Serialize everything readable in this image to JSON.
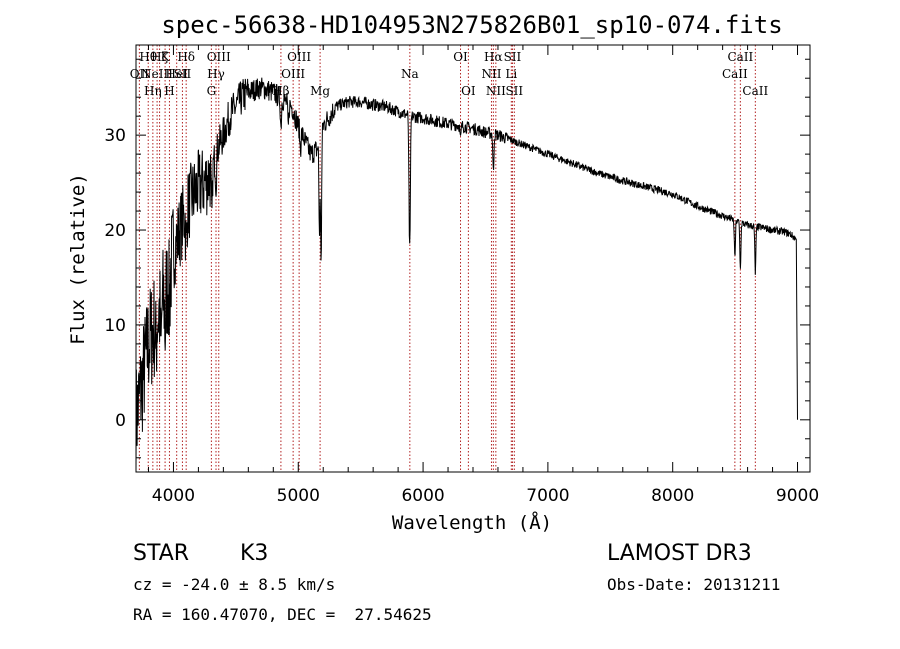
{
  "chart_data": {
    "type": "line",
    "title": "spec-56638-HD104953N275826B01_sp10-074.fits",
    "xlabel": "Wavelength (Å)",
    "ylabel": "Flux (relative)",
    "xlim": [
      3700,
      9100
    ],
    "ylim": [
      -5.5,
      39.5
    ],
    "xticks": [
      4000,
      5000,
      6000,
      7000,
      8000,
      9000
    ],
    "yticks": [
      0,
      10,
      20,
      30
    ],
    "grid": false,
    "legend": "none",
    "line_color": "#000000",
    "marker_color": "#b22222",
    "series": [
      {
        "x": [
          3700,
          3750,
          3800,
          3850,
          3900,
          3950,
          4000,
          4050,
          4100,
          4150,
          4200,
          4250,
          4300,
          4350,
          4400,
          4450,
          4500,
          4550,
          4600,
          4650,
          4700,
          4750,
          4800,
          4850,
          4900,
          4950,
          5000,
          5050,
          5100,
          5150,
          5200,
          5250,
          5300,
          5400,
          5500,
          5600,
          5700,
          5800,
          5900,
          6000,
          6100,
          6200,
          6300,
          6400,
          6500,
          6600,
          6700,
          6800,
          6900,
          7000,
          7200,
          7400,
          7600,
          7800,
          8000,
          8200,
          8400,
          8500,
          8600,
          8700,
          8800,
          8900,
          8950,
          8990,
          9000
        ],
        "y": [
          0.0,
          4.0,
          8.0,
          10.0,
          12.0,
          14.0,
          17.5,
          20.0,
          22.0,
          23.5,
          24.5,
          25.0,
          26.0,
          28.5,
          30.0,
          32.0,
          33.0,
          34.0,
          34.5,
          34.8,
          35.0,
          34.8,
          34.5,
          34.0,
          33.5,
          33.0,
          31.0,
          29.5,
          28.0,
          28.5,
          31.0,
          32.0,
          33.0,
          33.5,
          33.5,
          33.2,
          33.0,
          32.5,
          32.0,
          31.8,
          31.5,
          31.2,
          31.0,
          30.7,
          30.3,
          30.0,
          29.5,
          29.0,
          28.5,
          28.0,
          27.0,
          26.0,
          25.2,
          24.5,
          23.8,
          22.5,
          21.5,
          21.0,
          20.5,
          20.3,
          20.0,
          19.8,
          19.5,
          19.0,
          0.0
        ]
      }
    ],
    "absorption": [
      {
        "x": 3860,
        "depth": 3.0
      },
      {
        "x": 3900,
        "depth": 5.0
      },
      {
        "x": 3934,
        "depth": 4.0
      },
      {
        "x": 3968,
        "depth": 3.0
      },
      {
        "x": 4102,
        "depth": 4.0
      },
      {
        "x": 4308,
        "depth": 5.0
      },
      {
        "x": 4341,
        "depth": 3.0
      },
      {
        "x": 4861,
        "depth": 3.0
      },
      {
        "x": 4920,
        "depth": 2.5
      },
      {
        "x": 5017,
        "depth": 2.0
      },
      {
        "x": 5170,
        "depth": 10.0
      },
      {
        "x": 5183,
        "depth": 13.0
      },
      {
        "x": 5890,
        "depth": 10.0
      },
      {
        "x": 5896,
        "depth": 8.0
      },
      {
        "x": 6300,
        "depth": 1.5
      },
      {
        "x": 6563,
        "depth": 4.0
      },
      {
        "x": 8498,
        "depth": 4.0
      },
      {
        "x": 8542,
        "depth": 5.0
      },
      {
        "x": 8662,
        "depth": 5.0
      }
    ],
    "lines": [
      {
        "x": 3727,
        "label": "OII",
        "row": 1
      },
      {
        "x": 3798,
        "label": "Hθ",
        "row": 0
      },
      {
        "x": 3835,
        "label": "Hη",
        "row": 2
      },
      {
        "x": 3869,
        "label": "NeIII",
        "row": 1
      },
      {
        "x": 3889,
        "label": "Hζ",
        "row": 0
      },
      {
        "x": 3933,
        "label": "K",
        "row": 0
      },
      {
        "x": 3968,
        "label": "H",
        "row": 2
      },
      {
        "x": 4026,
        "label": "HeI",
        "row": 1
      },
      {
        "x": 4072,
        "label": "SII",
        "row": 1
      },
      {
        "x": 4102,
        "label": "Hδ",
        "row": 0
      },
      {
        "x": 4304,
        "label": "G",
        "row": 2
      },
      {
        "x": 4341,
        "label": "Hγ",
        "row": 1
      },
      {
        "x": 4363,
        "label": "OIII",
        "row": 0
      },
      {
        "x": 4861,
        "label": "Hβ",
        "row": 2
      },
      {
        "x": 4959,
        "label": "OIII",
        "row": 1
      },
      {
        "x": 5007,
        "label": "OIII",
        "row": 0
      },
      {
        "x": 5175,
        "label": "Mg",
        "row": 2
      },
      {
        "x": 5894,
        "label": "Na",
        "row": 1
      },
      {
        "x": 6300,
        "label": "OI",
        "row": 0
      },
      {
        "x": 6363,
        "label": "OI",
        "row": 2
      },
      {
        "x": 6548,
        "label": "NII",
        "row": 1
      },
      {
        "x": 6563,
        "label": "Hα",
        "row": 0
      },
      {
        "x": 6583,
        "label": "NII",
        "row": 2
      },
      {
        "x": 6707,
        "label": "Li",
        "row": 1
      },
      {
        "x": 6716,
        "label": "SII",
        "row": 0
      },
      {
        "x": 6731,
        "label": "SII",
        "row": 2
      },
      {
        "x": 8498,
        "label": "CaII",
        "row": 1
      },
      {
        "x": 8542,
        "label": "CaII",
        "row": 0
      },
      {
        "x": 8662,
        "label": "CaII",
        "row": 2
      }
    ]
  },
  "info": {
    "object_type": "STAR",
    "subclass": "K3",
    "survey": "LAMOST DR3",
    "redshift": "cz = -24.0 ± 8.5 km/s",
    "obs_date": "Obs-Date: 20131211",
    "coords": "RA = 160.47070, DEC =  27.54625"
  }
}
